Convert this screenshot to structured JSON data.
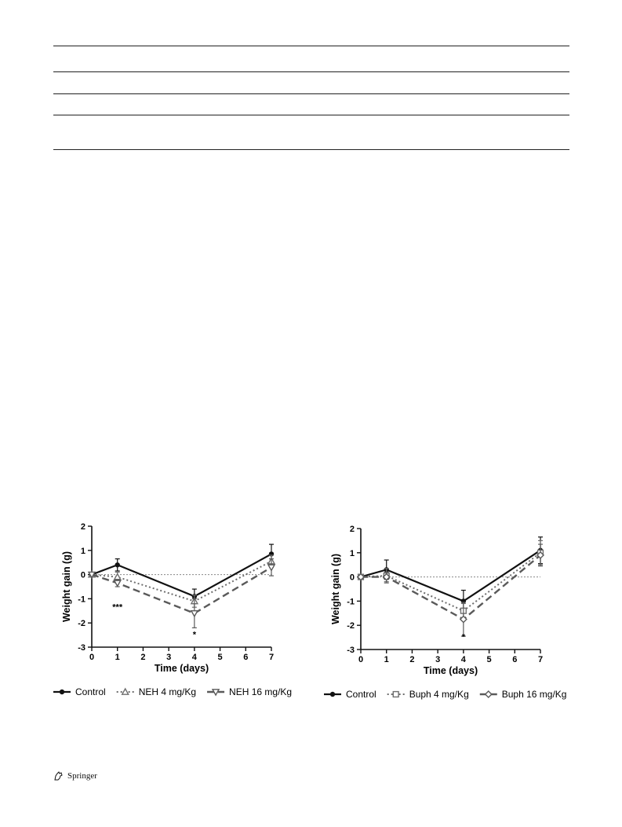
{
  "document": {
    "footer": {
      "publisher": "Springer",
      "logo_icon": "springer-horse-icon"
    }
  },
  "colors": {
    "control": "#111111",
    "low_dose": "#6e6e6e",
    "high_dose": "#5a5a5a",
    "zero_line": "#888888"
  },
  "chart_data": [
    {
      "type": "line",
      "xlabel": "Time (days)",
      "ylabel": "Weight gain (g)",
      "xlim": [
        0,
        7
      ],
      "ylim": [
        -3,
        2
      ],
      "xticks": [
        0,
        1,
        2,
        3,
        4,
        5,
        6,
        7
      ],
      "yticks": [
        -3,
        -2,
        -1,
        0,
        1,
        2
      ],
      "reference_line_y": 0,
      "x": [
        0,
        1,
        4,
        7
      ],
      "series": [
        {
          "name": "Control",
          "values": [
            0.0,
            0.4,
            -0.9,
            0.85
          ],
          "errors": [
            0.05,
            0.25,
            0.3,
            0.4
          ],
          "marker": "dot",
          "dash": "solid"
        },
        {
          "name": "NEH 4 mg/Kg",
          "values": [
            0.0,
            -0.1,
            -1.1,
            0.55
          ],
          "errors": [
            0.05,
            0.2,
            0.25,
            0.25
          ],
          "marker": "triangle-up",
          "dash": "dotted"
        },
        {
          "name": "NEH 16 mg/Kg",
          "values": [
            0.0,
            -0.35,
            -1.6,
            0.3
          ],
          "errors": [
            0.05,
            0.15,
            0.6,
            0.35
          ],
          "marker": "triangle-down",
          "dash": "dashed"
        }
      ],
      "annotations": [
        {
          "text": "***",
          "x": 1,
          "y": -1.45
        },
        {
          "text": "*",
          "x": 4,
          "y": -2.6
        }
      ],
      "legend_position": "bottom"
    },
    {
      "type": "line",
      "xlabel": "Time (days)",
      "ylabel": "Weight gain (g)",
      "xlim": [
        0,
        7
      ],
      "ylim": [
        -3,
        2
      ],
      "xticks": [
        0,
        1,
        2,
        3,
        4,
        5,
        6,
        7
      ],
      "yticks": [
        -3,
        -2,
        -1,
        0,
        1,
        2
      ],
      "reference_line_y": 0,
      "x": [
        0,
        1,
        4,
        7
      ],
      "series": [
        {
          "name": "Control",
          "values": [
            0.0,
            0.3,
            -1.0,
            1.1
          ],
          "errors": [
            0.05,
            0.4,
            0.45,
            0.55
          ],
          "marker": "dot",
          "dash": "solid"
        },
        {
          "name": "Buph 4 mg/Kg",
          "values": [
            0.0,
            0.05,
            -1.4,
            1.0
          ],
          "errors": [
            0.05,
            0.3,
            0.3,
            0.5
          ],
          "marker": "square",
          "dash": "dotted"
        },
        {
          "name": "Buph 16 mg/Kg",
          "values": [
            0.0,
            0.0,
            -1.75,
            0.9
          ],
          "errors": [
            0.05,
            0.2,
            0.7,
            0.45
          ],
          "marker": "diamond",
          "dash": "dashed"
        }
      ],
      "annotations": [
        {
          "text": "*",
          "x": 4,
          "y": -2.6
        }
      ],
      "legend_position": "bottom"
    }
  ]
}
